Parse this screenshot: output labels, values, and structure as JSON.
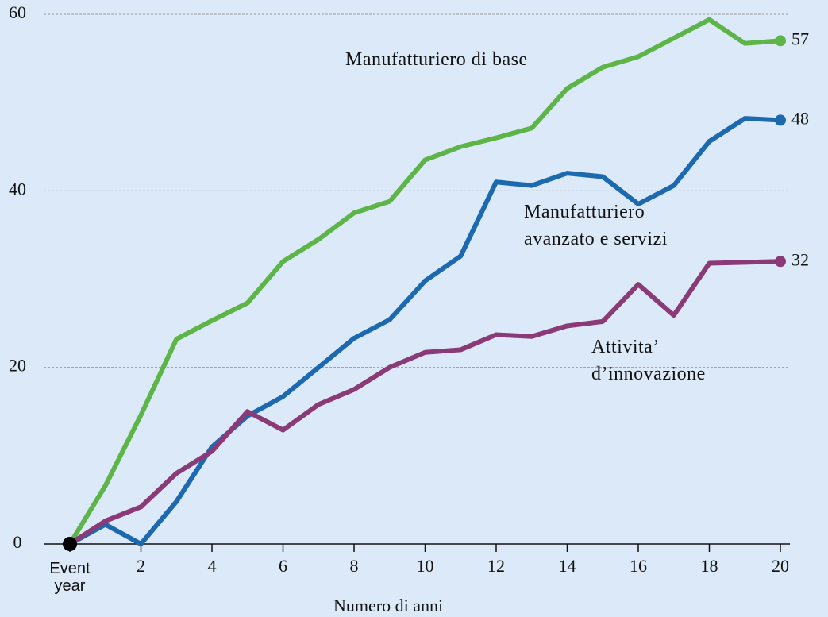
{
  "chart_data": {
    "type": "line",
    "x_label": "Numero di anni",
    "x": [
      0,
      1,
      2,
      3,
      4,
      5,
      6,
      7,
      8,
      9,
      10,
      11,
      12,
      13,
      14,
      15,
      16,
      17,
      18,
      19,
      20
    ],
    "xlim": [
      0,
      20
    ],
    "xticks": [
      {
        "value": 0,
        "label": "Event year"
      },
      2,
      4,
      6,
      8,
      10,
      12,
      14,
      16,
      18,
      20
    ],
    "ylim": [
      0,
      60
    ],
    "yticks": [
      0,
      20,
      40,
      60
    ],
    "grid": true,
    "series": [
      {
        "name": "Manufatturiero di base",
        "color": "#5db548",
        "values": [
          0,
          6.6,
          14.6,
          23.2,
          25.3,
          27.3,
          32.0,
          34.5,
          37.5,
          38.8,
          43.5,
          45.0,
          46.0,
          47.1,
          51.6,
          54.0,
          55.2,
          57.3,
          59.4,
          56.7,
          57
        ]
      },
      {
        "name": "Manufatturiero avanzato e servizi",
        "color": "#1c69b0",
        "values": [
          0,
          2.2,
          0,
          4.8,
          11.0,
          14.5,
          16.7,
          20.0,
          23.3,
          25.4,
          29.8,
          32.6,
          41.0,
          40.6,
          42.0,
          41.6,
          38.5,
          40.6,
          45.6,
          48.2,
          48
        ]
      },
      {
        "name": "Attivita’ d’innovazione",
        "color": "#8b3a78",
        "values": [
          0,
          2.6,
          4.2,
          8.0,
          10.5,
          15.0,
          12.9,
          15.8,
          17.5,
          20.0,
          21.7,
          22.0,
          23.7,
          23.5,
          24.7,
          25.2,
          29.4,
          25.9,
          31.8,
          31.9,
          32
        ]
      }
    ]
  }
}
